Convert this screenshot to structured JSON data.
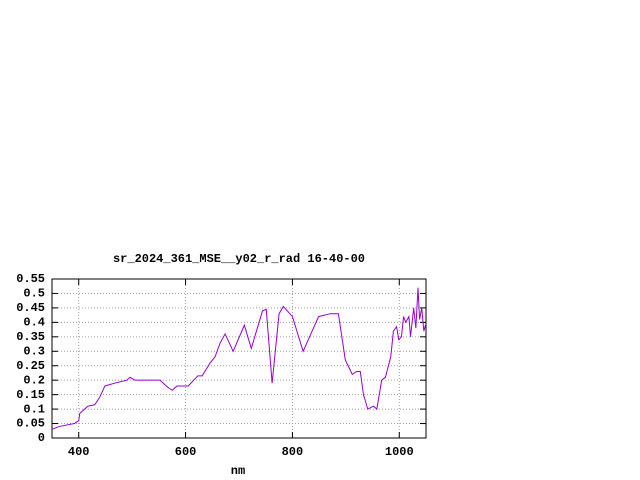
{
  "chart_data": {
    "type": "line",
    "title": "sr_2024_361_MSE__y02_r_rad 16-40-00",
    "x_label": "nm",
    "x": [
      350,
      364,
      392,
      400,
      402,
      417,
      430,
      439,
      449,
      468,
      490,
      496,
      505,
      552,
      567,
      575,
      584,
      605,
      623,
      631,
      646,
      655,
      665,
      674,
      689,
      710,
      723,
      744,
      751,
      762,
      775,
      783,
      800,
      820,
      849,
      871,
      886,
      899,
      912,
      920,
      927,
      933,
      941,
      952,
      958,
      967,
      974,
      984,
      989,
      995,
      999,
      1004,
      1008,
      1012,
      1018,
      1021,
      1027,
      1031,
      1035,
      1038,
      1042,
      1046,
      1049
    ],
    "series": [
      {
        "color": "#9400d3",
        "values": [
          0.03,
          0.04,
          0.05,
          0.06,
          0.085,
          0.11,
          0.115,
          0.14,
          0.18,
          0.19,
          0.2,
          0.21,
          0.2,
          0.2,
          0.175,
          0.165,
          0.18,
          0.18,
          0.215,
          0.215,
          0.26,
          0.28,
          0.33,
          0.36,
          0.3,
          0.39,
          0.31,
          0.44,
          0.445,
          0.19,
          0.43,
          0.455,
          0.42,
          0.3,
          0.42,
          0.43,
          0.43,
          0.27,
          0.22,
          0.23,
          0.23,
          0.15,
          0.1,
          0.11,
          0.1,
          0.2,
          0.21,
          0.28,
          0.37,
          0.385,
          0.34,
          0.35,
          0.42,
          0.4,
          0.42,
          0.35,
          0.45,
          0.38,
          0.52,
          0.41,
          0.45,
          0.37,
          0.39
        ]
      }
    ],
    "xlim": [
      350,
      1050
    ],
    "ylim": [
      0,
      0.55
    ],
    "xticks": [
      400,
      600,
      800,
      1000
    ],
    "yticks": [
      0,
      0.05,
      0.1,
      0.15,
      0.2,
      0.25,
      0.3,
      0.35,
      0.4,
      0.45,
      0.5,
      0.55
    ],
    "grid": true
  }
}
